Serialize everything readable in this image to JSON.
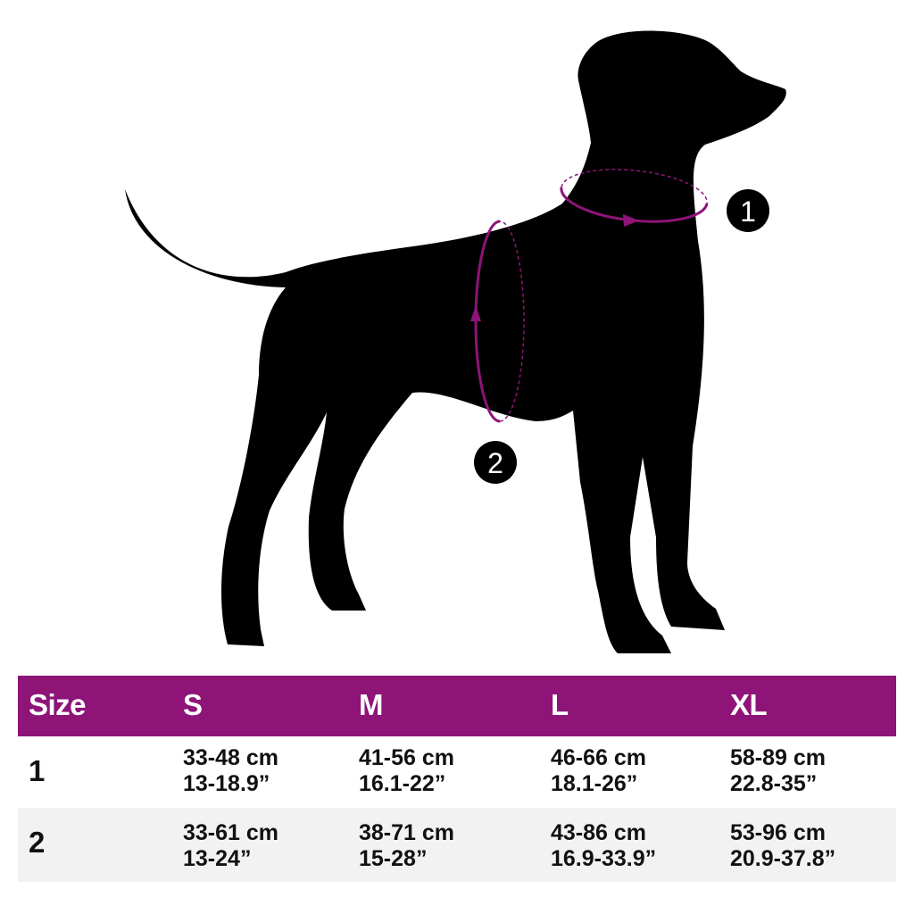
{
  "colors": {
    "accent": "#8e1478",
    "row_alt": "#f2f2f2",
    "silhouette": "#000000"
  },
  "diagram": {
    "markers": [
      "1",
      "2"
    ]
  },
  "table": {
    "headers": [
      "Size",
      "S",
      "M",
      "L",
      "XL"
    ],
    "rows": [
      {
        "label": "1",
        "cells": [
          [
            "33-48 cm",
            "13-18.9”"
          ],
          [
            "41-56 cm",
            "16.1-22”"
          ],
          [
            "46-66 cm",
            "18.1-26”"
          ],
          [
            "58-89 cm",
            "22.8-35”"
          ]
        ]
      },
      {
        "label": "2",
        "cells": [
          [
            "33-61 cm",
            "13-24”"
          ],
          [
            "38-71 cm",
            "15-28”"
          ],
          [
            "43-86 cm",
            "16.9-33.9”"
          ],
          [
            "53-96 cm",
            "20.9-37.8”"
          ]
        ]
      }
    ]
  }
}
